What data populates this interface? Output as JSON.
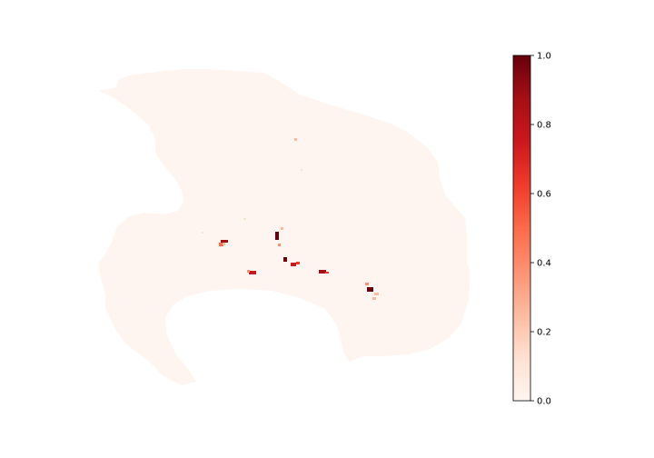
{
  "map": {
    "base_fill": "#fff5f0",
    "colormap": "Reds",
    "colorbar": {
      "min": 0.0,
      "max": 1.0,
      "ticks": [
        {
          "value": 0.0,
          "label": "0.0"
        },
        {
          "value": 0.2,
          "label": "0.2"
        },
        {
          "value": 0.4,
          "label": "0.4"
        },
        {
          "value": 0.6,
          "label": "0.6"
        },
        {
          "value": 0.8,
          "label": "0.8"
        },
        {
          "value": 1.0,
          "label": "1.0"
        }
      ],
      "gradient_stops": [
        "#fff5f0",
        "#fee0d2",
        "#fcbba1",
        "#fc9272",
        "#fb6a4a",
        "#ef3b2c",
        "#cb181d",
        "#a50f15",
        "#67000d"
      ]
    }
  }
}
